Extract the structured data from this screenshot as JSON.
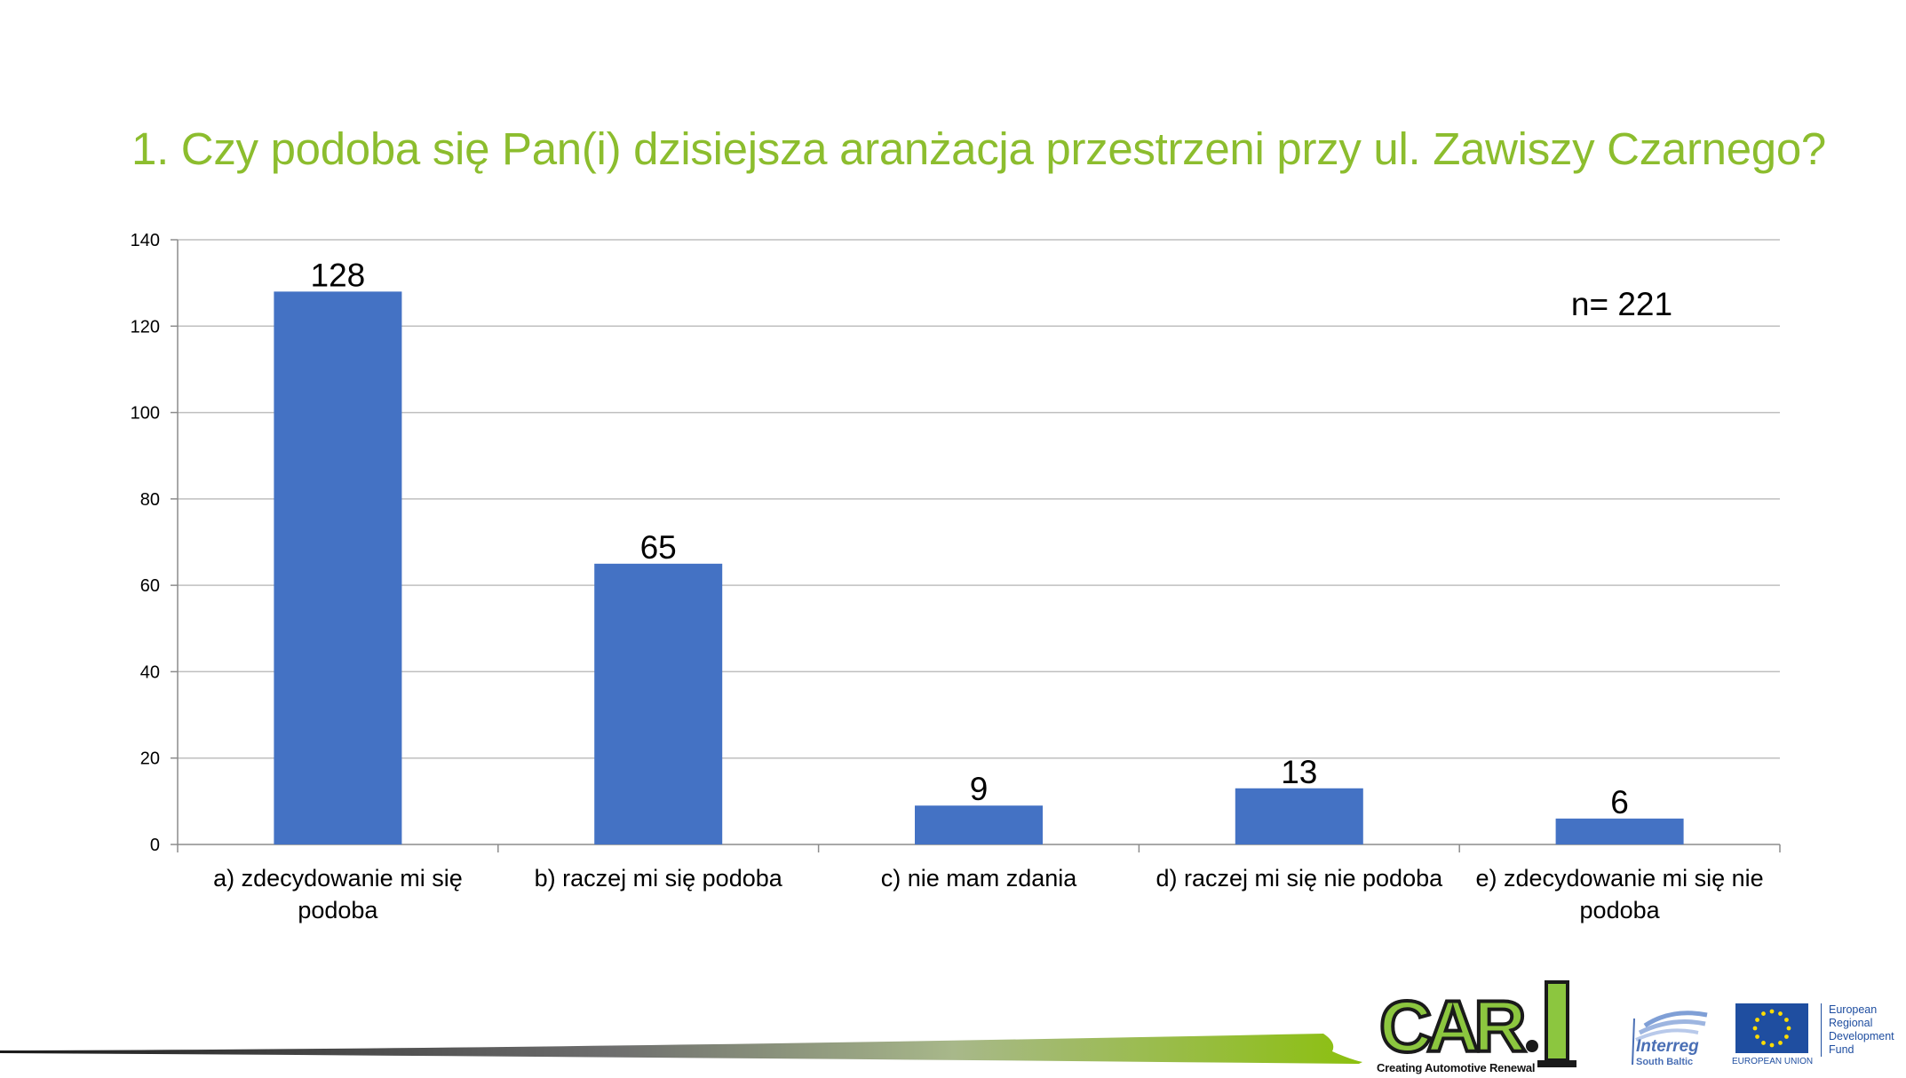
{
  "slide": {
    "title": "1. Czy podoba się Pan(i) dzisiejsza aranżacja przestrzeni przy ul. Zawiszy Czarnego?"
  },
  "chart_data": {
    "type": "bar",
    "title": "",
    "xlabel": "",
    "ylabel": "",
    "categories": [
      [
        "a) zdecydowanie mi się",
        "podoba"
      ],
      [
        "b) raczej mi się podoba"
      ],
      [
        "c) nie mam zdania"
      ],
      [
        "d) raczej mi się nie podoba"
      ],
      [
        "e) zdecydowanie mi się nie",
        "podoba"
      ]
    ],
    "values": [
      128,
      65,
      9,
      13,
      6
    ],
    "data_labels": [
      "128",
      "65",
      "9",
      "13",
      "6"
    ],
    "ylim": [
      0,
      140
    ],
    "yticks": [
      0,
      20,
      40,
      60,
      80,
      100,
      120,
      140
    ],
    "grid": true,
    "legend": "none",
    "annotation": "n= 221",
    "bar_color": "#4472c4",
    "gridline_color": "#bfbfbf"
  },
  "footer": {
    "car_logo_text": "CAR.I",
    "car_tagline": "Creating Automotive Renewal",
    "interreg_name": "Interreg",
    "interreg_sub": "South Baltic",
    "eu_caption": "EUROPEAN UNION",
    "erdf_lines": [
      "European",
      "Regional",
      "Development",
      "Fund"
    ],
    "colors": {
      "title_green": "#8cbd2e",
      "eu_blue": "#1f4ea0",
      "eu_star": "#ffdd00"
    }
  }
}
